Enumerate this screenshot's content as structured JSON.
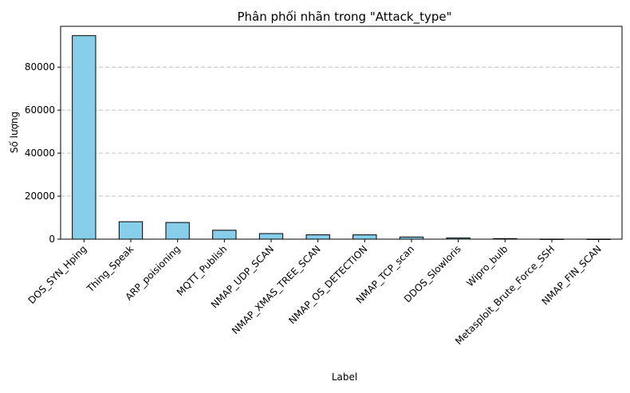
{
  "chart_data": {
    "type": "bar",
    "title": "Phân phối nhãn trong \"Attack_type\"",
    "xlabel": "Label",
    "ylabel": "Số lượng",
    "categories": [
      "DOS_SYN_Hping",
      "Thing_Speak",
      "ARP_poisioning",
      "MQTT_Publish",
      "NMAP_UDP_SCAN",
      "NMAP_XMAS_TREE_SCAN",
      "NMAP_OS_DETECTION",
      "NMAP_TCP_scan",
      "DDOS_Slowloris",
      "Wipro_bulb",
      "Metasploit_Brute_Force_SSH",
      "NMAP_FIN_SCAN"
    ],
    "values": [
      94659,
      8108,
      7750,
      4146,
      2590,
      2010,
      2000,
      1002,
      534,
      253,
      37,
      28
    ],
    "yticks": [
      0,
      20000,
      40000,
      60000,
      80000
    ],
    "ylim": [
      0,
      99000
    ],
    "grid": "y-dashed",
    "colors": {
      "bar_fill": "#87ceeb",
      "bar_edge": "#000000",
      "grid": "#c0c0c0"
    }
  }
}
